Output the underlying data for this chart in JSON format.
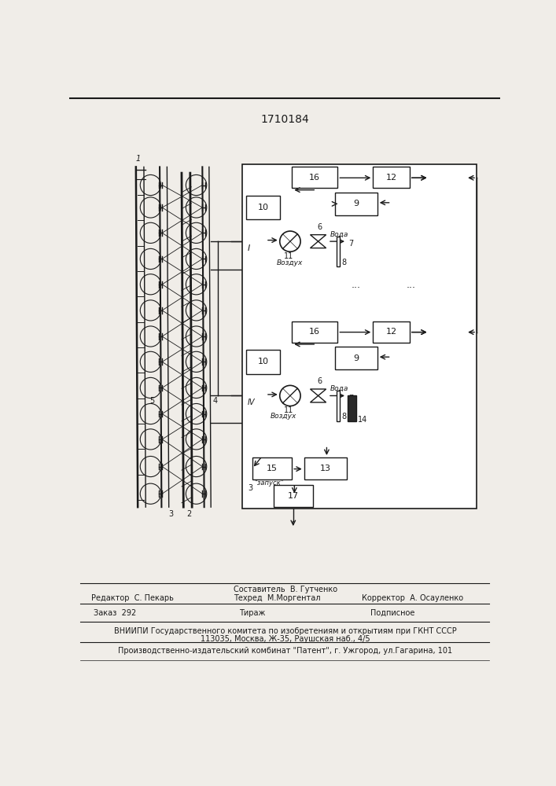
{
  "patent_number": "1710184",
  "bg_color": "#f0ede8",
  "line_color": "#1a1a1a",
  "lw": 1.0,
  "lw_thick": 1.5,
  "fontsize_label": 8,
  "fontsize_small": 7,
  "fontsize_tiny": 6.5,
  "footer": {
    "sestavitel": "Составитель  В. Гутченко",
    "redaktor": "Редактор  С. Пекарь",
    "tekhred": "Техред  М.Моргентал",
    "korrektor": "Корректор  А. Осауленко",
    "zakaz": "Заказ  292",
    "tirazh": "Тираж",
    "podpisnoe": "Подписное",
    "vniipи": "ВНИИПИ Государственного комитета по изобретениям и открытиям при ГКНТ СССР",
    "address": "113035, Москва, Ж-35, Раушская наб., 4/5",
    "patent_plant": "Производственно-издательский комбинат \"Патент\", г. Ужгород, ул.Гагарина, 101"
  }
}
